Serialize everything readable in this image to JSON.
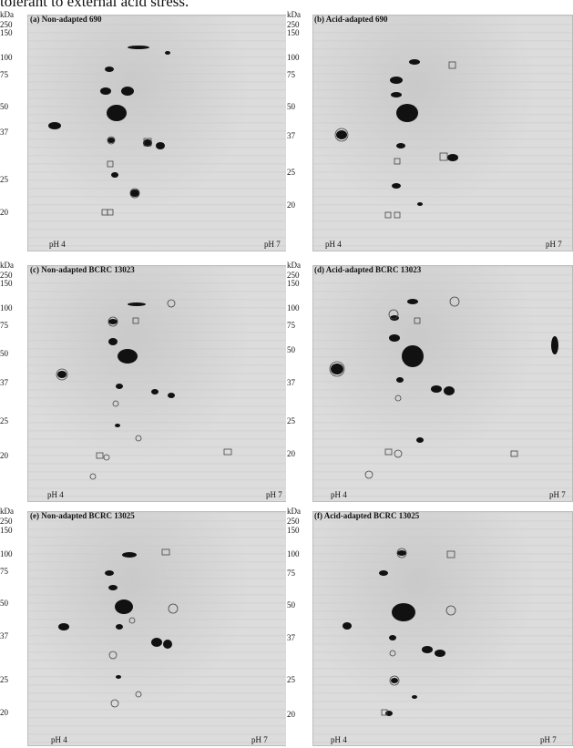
{
  "caption": "tolerant to external acid stress.",
  "kda_label": "kDa",
  "mw_labels": [
    "250",
    "150",
    "100",
    "75",
    "50",
    "37",
    "25",
    "20"
  ],
  "ph_left": "pH 4",
  "ph_right": "pH 7",
  "panels": [
    {
      "title": "(a) Non-adapted 690"
    },
    {
      "title": "(b) Acid-adapted 690"
    },
    {
      "title": "(c) Non-adapted BCRC 13023"
    },
    {
      "title": "(d) Acid-adapted BCRC 13023"
    },
    {
      "title": "(e) Non-adapted BCRC 13025"
    },
    {
      "title": "(f) Acid-adapted BCRC 13025"
    }
  ]
}
